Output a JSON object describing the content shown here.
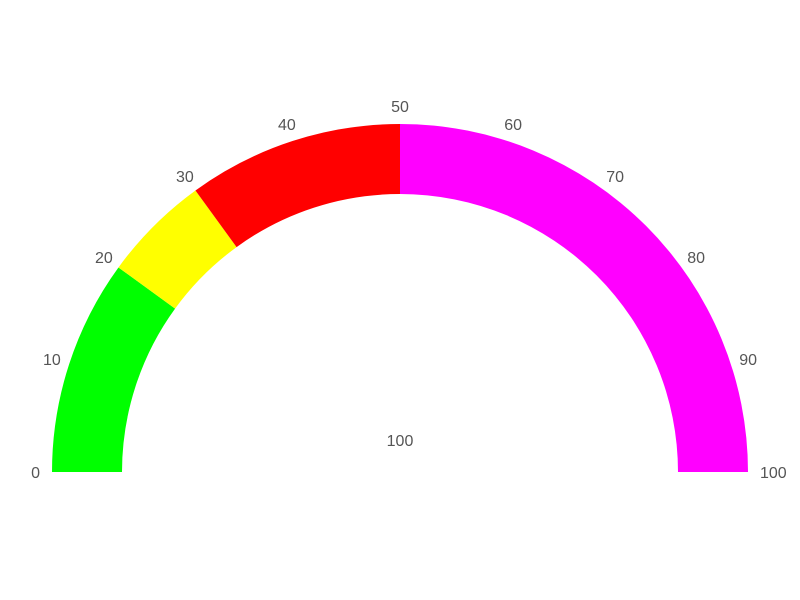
{
  "chart_data": {
    "type": "gauge",
    "min": 0,
    "max": 100,
    "value": 100,
    "value_label": "100",
    "bands": [
      {
        "from": 0,
        "to": 20,
        "color": "#00ff00"
      },
      {
        "from": 20,
        "to": 30,
        "color": "#ffff00"
      },
      {
        "from": 30,
        "to": 50,
        "color": "#ff0000"
      },
      {
        "from": 50,
        "to": 100,
        "color": "#ff00ff"
      }
    ],
    "tick_labels": [
      "0",
      "10",
      "20",
      "30",
      "40",
      "50",
      "60",
      "70",
      "80",
      "90",
      "100"
    ]
  }
}
